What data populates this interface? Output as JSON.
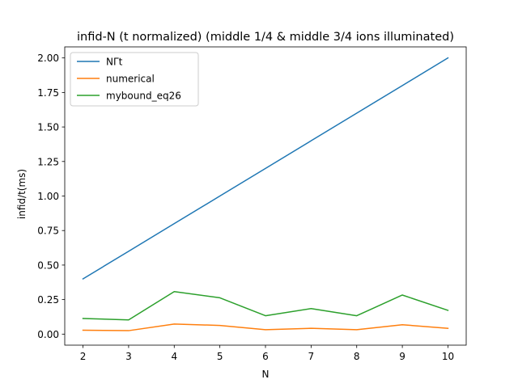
{
  "chart_data": {
    "type": "line",
    "title": "infid-N (t normalized) (middle 1/4 & middle 3/4 ions illuminated)",
    "xlabel": "N",
    "ylabel": "infid/t(ms)",
    "x": [
      2,
      3,
      4,
      5,
      6,
      7,
      8,
      9,
      10
    ],
    "xlim": [
      1.6,
      10.4
    ],
    "ylim": [
      -0.08,
      2.08
    ],
    "xticks": [
      "2",
      "3",
      "4",
      "5",
      "6",
      "7",
      "8",
      "9",
      "10"
    ],
    "yticks": [
      "0.00",
      "0.25",
      "0.50",
      "0.75",
      "1.00",
      "1.25",
      "1.50",
      "1.75",
      "2.00"
    ],
    "grid": false,
    "legend_position": "top-left",
    "series": [
      {
        "name": "NΓt",
        "color": "#1f77b4",
        "values": [
          0.4,
          0.6,
          0.8,
          1.0,
          1.2,
          1.4,
          1.6,
          1.8,
          2.0
        ]
      },
      {
        "name": "numerical",
        "color": "#ff7f0e",
        "values": [
          0.028,
          0.025,
          0.073,
          0.063,
          0.032,
          0.042,
          0.032,
          0.068,
          0.042
        ]
      },
      {
        "name": "mybound_eq26",
        "color": "#2ca02c",
        "values": [
          0.113,
          0.103,
          0.308,
          0.263,
          0.133,
          0.185,
          0.133,
          0.283,
          0.172
        ]
      }
    ]
  }
}
